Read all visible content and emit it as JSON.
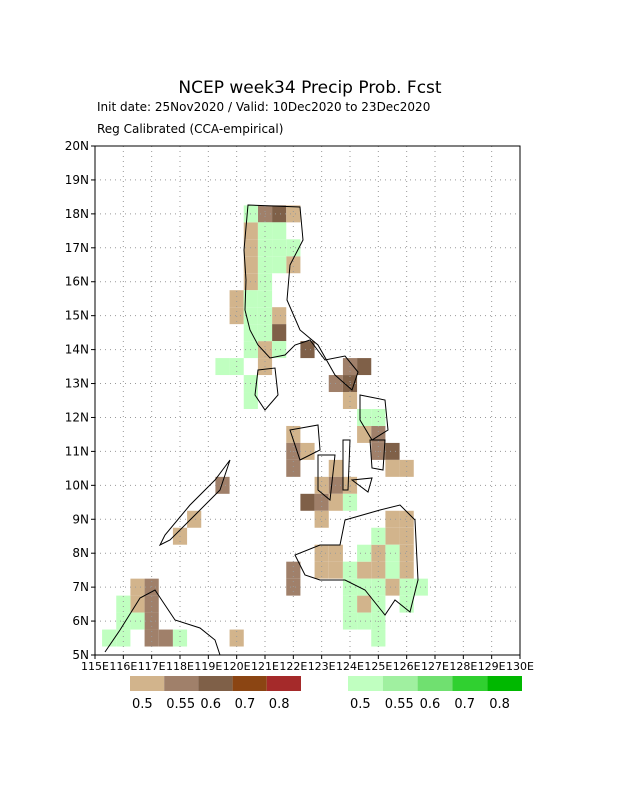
{
  "chart_data": {
    "type": "gridmap",
    "title": "NCEP week34 Precip Prob. Fcst",
    "subtitle": "Init date: 25Nov2020 / Valid: 10Dec2020 to 23Dec2020",
    "subtitle2": "Reg Calibrated (CCA-empirical)",
    "xlim": [
      115,
      130
    ],
    "ylim": [
      5,
      20
    ],
    "xticks": [
      {
        "value": 115,
        "label": "115E"
      },
      {
        "value": 116,
        "label": "116E"
      },
      {
        "value": 117,
        "label": "117E"
      },
      {
        "value": 118,
        "label": "118E"
      },
      {
        "value": 119,
        "label": "119E"
      },
      {
        "value": 120,
        "label": "120E"
      },
      {
        "value": 121,
        "label": "121E"
      },
      {
        "value": 122,
        "label": "122E"
      },
      {
        "value": 123,
        "label": "123E"
      },
      {
        "value": 124,
        "label": "124E"
      },
      {
        "value": 125,
        "label": "125E"
      },
      {
        "value": 126,
        "label": "126E"
      },
      {
        "value": 127,
        "label": "127E"
      },
      {
        "value": 128,
        "label": "128E"
      },
      {
        "value": 129,
        "label": "129E"
      },
      {
        "value": 130,
        "label": "130E"
      }
    ],
    "yticks": [
      {
        "value": 5,
        "label": "5N"
      },
      {
        "value": 6,
        "label": "6N"
      },
      {
        "value": 7,
        "label": "7N"
      },
      {
        "value": 8,
        "label": "8N"
      },
      {
        "value": 9,
        "label": "9N"
      },
      {
        "value": 10,
        "label": "10N"
      },
      {
        "value": 11,
        "label": "11N"
      },
      {
        "value": 12,
        "label": "12N"
      },
      {
        "value": 13,
        "label": "13N"
      },
      {
        "value": 14,
        "label": "14N"
      },
      {
        "value": 15,
        "label": "15N"
      },
      {
        "value": 16,
        "label": "16N"
      },
      {
        "value": 17,
        "label": "17N"
      },
      {
        "value": 18,
        "label": "18N"
      },
      {
        "value": 19,
        "label": "19N"
      },
      {
        "value": 20,
        "label": "20N"
      }
    ],
    "grid": true,
    "legend_below": {
      "levels": [
        0.5,
        0.55,
        0.6,
        0.7,
        0.8
      ],
      "colors": [
        "#d2b48c",
        "#a0806a",
        "#7f6048",
        "#8b4513",
        "#a52a2a"
      ]
    },
    "legend_above": {
      "levels": [
        0.5,
        0.55,
        0.6,
        0.7,
        0.8
      ],
      "colors": [
        "#c0ffc0",
        "#a0f0a0",
        "#70e070",
        "#30d030",
        "#00b800"
      ]
    },
    "below_cells": [
      [
        121,
        18,
        0.55
      ],
      [
        121.5,
        18,
        0.6
      ],
      [
        122,
        18,
        0.5
      ],
      [
        120.5,
        17.5,
        0.5
      ],
      [
        120.5,
        17,
        0.5
      ],
      [
        120.5,
        16.5,
        0.5
      ],
      [
        122,
        16.5,
        0.5
      ],
      [
        120.5,
        16,
        0.5
      ],
      [
        120,
        15.5,
        0.5
      ],
      [
        120,
        15,
        0.5
      ],
      [
        121.5,
        15,
        0.5
      ],
      [
        121.5,
        14.5,
        0.6
      ],
      [
        121,
        14,
        0.5
      ],
      [
        122.5,
        14,
        0.6
      ],
      [
        121,
        13.5,
        0.5
      ],
      [
        124,
        13.5,
        0.55
      ],
      [
        124.5,
        13.5,
        0.6
      ],
      [
        123.5,
        13,
        0.55
      ],
      [
        124,
        13,
        0.6
      ],
      [
        124,
        12.5,
        0.5
      ],
      [
        122,
        11.5,
        0.5
      ],
      [
        124.5,
        11.5,
        0.5
      ],
      [
        125,
        11.5,
        0.55
      ],
      [
        122,
        11,
        0.55
      ],
      [
        122.5,
        11,
        0.5
      ],
      [
        125,
        11,
        0.55
      ],
      [
        125.5,
        11,
        0.6
      ],
      [
        122,
        10.5,
        0.55
      ],
      [
        123.5,
        10.5,
        0.5
      ],
      [
        125.5,
        10.5,
        0.5
      ],
      [
        126,
        10.5,
        0.5
      ],
      [
        123,
        10,
        0.5
      ],
      [
        123.5,
        10,
        0.55
      ],
      [
        124,
        10,
        0.5
      ],
      [
        119.5,
        10,
        0.55
      ],
      [
        122.5,
        9.5,
        0.6
      ],
      [
        123,
        9.5,
        0.55
      ],
      [
        123.5,
        9.5,
        0.5
      ],
      [
        123,
        9,
        0.5
      ],
      [
        125.5,
        9,
        0.5
      ],
      [
        126,
        9,
        0.5
      ],
      [
        118.5,
        9,
        0.5
      ],
      [
        125.5,
        8.5,
        0.5
      ],
      [
        126,
        8.5,
        0.5
      ],
      [
        118,
        8.5,
        0.5
      ],
      [
        123,
        8,
        0.5
      ],
      [
        123.5,
        8,
        0.5
      ],
      [
        125,
        8,
        0.5
      ],
      [
        126,
        8,
        0.5
      ],
      [
        122,
        7.5,
        0.55
      ],
      [
        123,
        7.5,
        0.5
      ],
      [
        123.5,
        7.5,
        0.5
      ],
      [
        124.5,
        7.5,
        0.5
      ],
      [
        125,
        7.5,
        0.5
      ],
      [
        126,
        7.5,
        0.5
      ],
      [
        122,
        7,
        0.55
      ],
      [
        125.5,
        7,
        0.5
      ],
      [
        116.5,
        7,
        0.5
      ],
      [
        117,
        7,
        0.55
      ],
      [
        124.5,
        6.5,
        0.5
      ],
      [
        116.5,
        6.5,
        0.5
      ],
      [
        117,
        6.5,
        0.55
      ],
      [
        117,
        6,
        0.55
      ],
      [
        117,
        5.5,
        0.55
      ],
      [
        117.5,
        5.5,
        0.55
      ],
      [
        120,
        5.5,
        0.5
      ]
    ],
    "above_cells": [
      [
        120.5,
        18,
        0.5
      ],
      [
        121,
        17.5,
        0.5
      ],
      [
        121.5,
        17.5,
        0.5
      ],
      [
        121,
        17,
        0.5
      ],
      [
        121.5,
        17,
        0.5
      ],
      [
        122,
        17,
        0.5
      ],
      [
        121,
        16.5,
        0.5
      ],
      [
        121.5,
        16.5,
        0.5
      ],
      [
        121,
        16,
        0.5
      ],
      [
        120.5,
        15.5,
        0.5
      ],
      [
        121,
        15.5,
        0.5
      ],
      [
        120.5,
        15,
        0.5
      ],
      [
        121,
        15,
        0.5
      ],
      [
        120.5,
        14.5,
        0.5
      ],
      [
        121,
        14.5,
        0.5
      ],
      [
        120.5,
        14,
        0.5
      ],
      [
        121.5,
        14,
        0.5
      ],
      [
        119.5,
        13.5,
        0.5
      ],
      [
        120,
        13.5,
        0.5
      ],
      [
        120.5,
        13,
        0.5
      ],
      [
        120.5,
        12.5,
        0.5
      ],
      [
        124.5,
        12,
        0.5
      ],
      [
        125,
        12,
        0.5
      ],
      [
        124,
        9.5,
        0.5
      ],
      [
        125,
        8.5,
        0.5
      ],
      [
        124.5,
        8,
        0.5
      ],
      [
        125.5,
        8,
        0.5
      ],
      [
        124,
        7.5,
        0.5
      ],
      [
        125.5,
        7.5,
        0.5
      ],
      [
        124,
        7,
        0.5
      ],
      [
        124.5,
        7,
        0.5
      ],
      [
        125,
        7,
        0.5
      ],
      [
        126,
        7,
        0.5
      ],
      [
        126.5,
        7,
        0.5
      ],
      [
        124,
        6.5,
        0.5
      ],
      [
        125,
        6.5,
        0.5
      ],
      [
        126,
        6.5,
        0.5
      ],
      [
        124,
        6,
        0.5
      ],
      [
        124.5,
        6,
        0.5
      ],
      [
        125,
        6,
        0.5
      ],
      [
        125,
        5.5,
        0.5
      ],
      [
        116,
        6.5,
        0.5
      ],
      [
        116,
        6,
        0.5
      ],
      [
        116.5,
        6,
        0.5
      ],
      [
        115.5,
        5.5,
        0.5
      ],
      [
        116,
        5.5,
        0.5
      ],
      [
        118,
        5.5,
        0.5
      ]
    ]
  }
}
